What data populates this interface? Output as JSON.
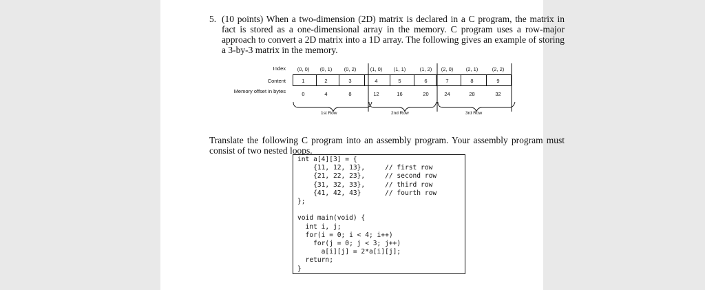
{
  "question": {
    "number": "5.",
    "text": "(10 points) When a two-dimension (2D) matrix is declared in a C program, the matrix in fact is stored as a one-dimensional array in the memory. C program uses a row-major approach to convert a 2D matrix into a 1D array. The following gives an example of storing a 3-by-3 matrix in the memory."
  },
  "table": {
    "labels": {
      "index": "Index",
      "content": "Content",
      "offset": "Memory offset in bytes"
    },
    "indices": [
      "(0, 0)",
      "(0, 1)",
      "(0, 2)",
      "(1, 0)",
      "(1, 1)",
      "(1, 2)",
      "(2, 0)",
      "(2, 1)",
      "(2, 2)"
    ],
    "contents": [
      "1",
      "2",
      "3",
      "4",
      "5",
      "6",
      "7",
      "8",
      "9"
    ],
    "offsets": [
      "0",
      "4",
      "8",
      "12",
      "16",
      "20",
      "24",
      "28",
      "32"
    ],
    "row_labels": [
      "1st Row",
      "2nd Row",
      "3rd Row"
    ]
  },
  "instruction": "Translate the following C program into an assembly program. Your assembly program must consist of two nested loops.",
  "code": "int a[4][3] = {\n    {11, 12, 13},     // first row\n    {21, 22, 23},     // second row\n    {31, 32, 33},     // third row\n    {41, 42, 43}      // fourth row\n};\n\nvoid main(void) {\n  int i, j;\n  for(i = 0; i < 4; i++)\n    for(j = 0; j < 3; j++)\n      a[i][j] = 2*a[i][j];\n  return;\n}"
}
